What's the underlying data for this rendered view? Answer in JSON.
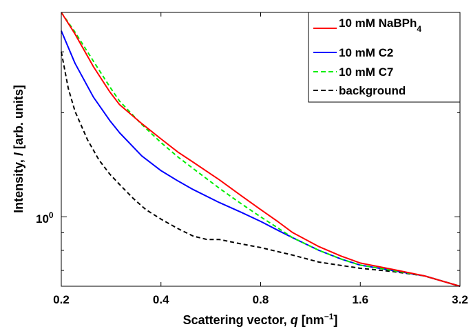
{
  "chart_data": {
    "type": "line",
    "xlabel_parts": {
      "main": "Scattering vector, ",
      "var": "q",
      "units_open": " [nm",
      "units_exp": "−1",
      "units_close": "]"
    },
    "ylabel_parts": {
      "main": "Intensity, ",
      "var": "I",
      "units": " [arb. units]"
    },
    "xscale": "log",
    "yscale": "log",
    "xlim": [
      0.2,
      3.2
    ],
    "ylim": [
      0.63,
      3.9
    ],
    "xticks": [
      0.2,
      0.4,
      0.8,
      1.6,
      3.2
    ],
    "xtick_labels": [
      "0.2",
      "0.4",
      "0.8",
      "1.6",
      "3.2"
    ],
    "yticks": [
      1
    ],
    "ytick_label": {
      "base": "10",
      "exp": "0"
    },
    "grid": false,
    "legend_position": "top-right",
    "series": [
      {
        "name_parts": {
          "main": "10 mM NaBPh",
          "sub": "4"
        },
        "color": "#ff0000",
        "dash": "solid",
        "x": [
          0.2,
          0.22,
          0.25,
          0.28,
          0.3,
          0.35,
          0.4,
          0.45,
          0.5,
          0.6,
          0.7,
          0.8,
          0.9,
          1.0,
          1.2,
          1.4,
          1.6,
          2.0,
          2.5,
          3.2
        ],
        "y": [
          3.9,
          3.38,
          2.72,
          2.3,
          2.11,
          1.86,
          1.68,
          1.54,
          1.44,
          1.28,
          1.15,
          1.05,
          0.97,
          0.9,
          0.82,
          0.77,
          0.735,
          0.705,
          0.675,
          0.63
        ]
      },
      {
        "name_parts": {
          "main": "10 mM C2",
          "sub": ""
        },
        "color": "#0000ff",
        "dash": "solid",
        "x": [
          0.2,
          0.22,
          0.25,
          0.28,
          0.3,
          0.35,
          0.4,
          0.45,
          0.5,
          0.6,
          0.7,
          0.8,
          0.9,
          1.0,
          1.2,
          1.4,
          1.6,
          2.0,
          2.5,
          3.2
        ],
        "y": [
          3.45,
          2.78,
          2.22,
          1.9,
          1.75,
          1.5,
          1.36,
          1.27,
          1.2,
          1.1,
          1.03,
          0.97,
          0.915,
          0.87,
          0.8,
          0.755,
          0.725,
          0.7,
          0.675,
          0.63
        ]
      },
      {
        "name_parts": {
          "main": "10 mM C7",
          "sub": ""
        },
        "color": "#00ee00",
        "dash": "dashed",
        "x": [
          0.2,
          0.22,
          0.25,
          0.28,
          0.3,
          0.35,
          0.4,
          0.45,
          0.5,
          0.6,
          0.7,
          0.8,
          0.9,
          1.0,
          1.2,
          1.4,
          1.6,
          2.0,
          2.5,
          3.2
        ],
        "y": [
          3.9,
          3.42,
          2.82,
          2.38,
          2.16,
          1.85,
          1.64,
          1.49,
          1.38,
          1.21,
          1.09,
          1.0,
          0.93,
          0.87,
          0.8,
          0.755,
          0.725,
          0.7,
          0.675,
          0.63
        ]
      },
      {
        "name_parts": {
          "main": "background",
          "sub": ""
        },
        "color": "#000000",
        "dash": "dashed",
        "x": [
          0.2,
          0.21,
          0.22,
          0.24,
          0.26,
          0.28,
          0.3,
          0.33,
          0.36,
          0.4,
          0.45,
          0.5,
          0.55,
          0.6,
          0.7,
          0.8,
          1.0,
          1.2,
          1.6,
          2.0,
          2.5,
          3.2
        ],
        "y": [
          3.0,
          2.35,
          2.02,
          1.67,
          1.46,
          1.33,
          1.24,
          1.13,
          1.05,
          0.985,
          0.925,
          0.88,
          0.86,
          0.86,
          0.835,
          0.815,
          0.775,
          0.74,
          0.71,
          0.695,
          0.675,
          0.63
        ]
      }
    ]
  }
}
